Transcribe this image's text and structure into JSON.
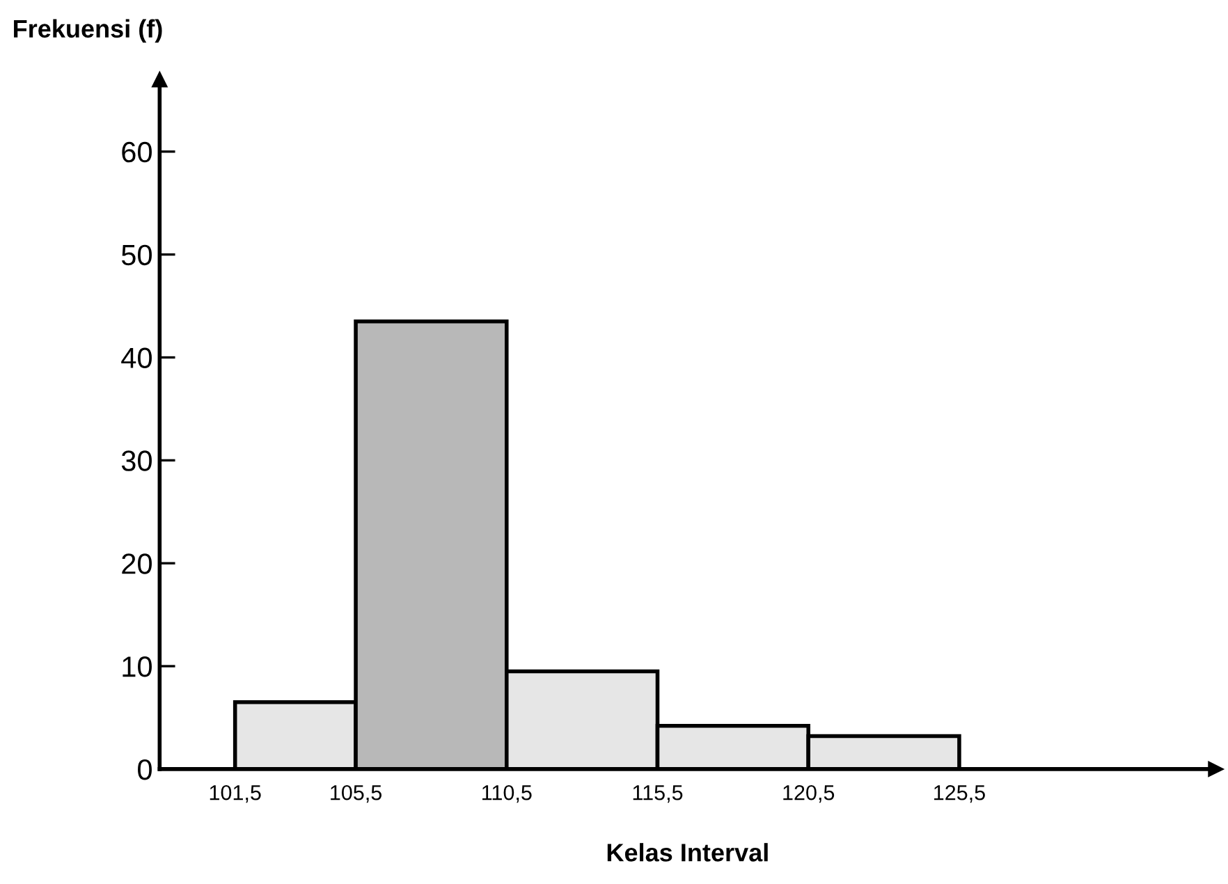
{
  "chart_data": {
    "type": "histogram",
    "xlabel": "Kelas Interval",
    "ylabel": "Frekuensi (f)",
    "bins": [
      101.5,
      105.5,
      110.5,
      115.5,
      120.5,
      125.5
    ],
    "values": [
      6.5,
      43.5,
      9.5,
      4.2,
      3.2
    ],
    "colors": [
      "#e6e6e6",
      "#b8b8b8",
      "#e6e6e6",
      "#e6e6e6",
      "#e6e6e6"
    ],
    "xlim": [
      99,
      134
    ],
    "ylim": [
      0,
      67
    ],
    "xticks": [
      {
        "value": 101.5,
        "label": "101,5"
      },
      {
        "value": 105.5,
        "label": "105,5"
      },
      {
        "value": 110.5,
        "label": "110,5"
      },
      {
        "value": 115.5,
        "label": "115,5"
      },
      {
        "value": 120.5,
        "label": "120,5"
      },
      {
        "value": 125.5,
        "label": "125,5"
      }
    ],
    "yticks": [
      0,
      10,
      20,
      30,
      40,
      50,
      60
    ],
    "grid": false
  }
}
